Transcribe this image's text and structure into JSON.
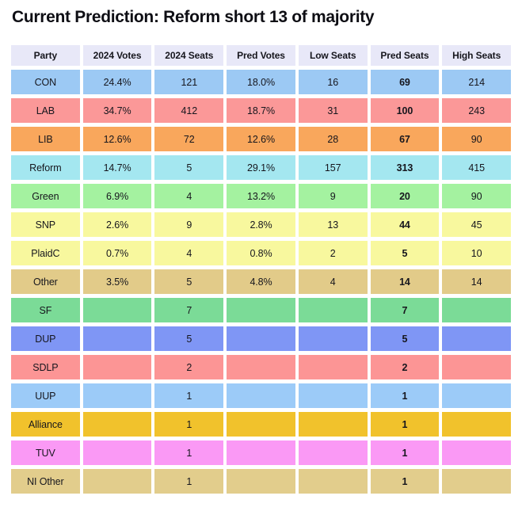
{
  "title": "Current Prediction: Reform short 13 of majority",
  "colors": {
    "page_bg": "#ffffff",
    "header_bg": "#e8e8f8",
    "text": "#16161d",
    "title_text": "#0e0e14"
  },
  "table": {
    "columns": [
      "Party",
      "2024 Votes",
      "2024 Seats",
      "Pred Votes",
      "Low Seats",
      "Pred Seats",
      "High Seats"
    ],
    "rows": [
      {
        "party": "CON",
        "color": "#9cc9f4",
        "votes2024": "24.4%",
        "seats2024": "121",
        "pred_votes": "18.0%",
        "low_seats": "16",
        "pred_seats": "69",
        "high_seats": "214"
      },
      {
        "party": "LAB",
        "color": "#fb9898",
        "votes2024": "34.7%",
        "seats2024": "412",
        "pred_votes": "18.7%",
        "low_seats": "31",
        "pred_seats": "100",
        "high_seats": "243"
      },
      {
        "party": "LIB",
        "color": "#f9a75c",
        "votes2024": "12.6%",
        "seats2024": "72",
        "pred_votes": "12.6%",
        "low_seats": "28",
        "pred_seats": "67",
        "high_seats": "90"
      },
      {
        "party": "Reform",
        "color": "#a4e7f0",
        "votes2024": "14.7%",
        "seats2024": "5",
        "pred_votes": "29.1%",
        "low_seats": "157",
        "pred_seats": "313",
        "high_seats": "415"
      },
      {
        "party": "Green",
        "color": "#a4f2a0",
        "votes2024": "6.9%",
        "seats2024": "4",
        "pred_votes": "13.2%",
        "low_seats": "9",
        "pred_seats": "20",
        "high_seats": "90"
      },
      {
        "party": "SNP",
        "color": "#f8f89e",
        "votes2024": "2.6%",
        "seats2024": "9",
        "pred_votes": "2.8%",
        "low_seats": "13",
        "pred_seats": "44",
        "high_seats": "45"
      },
      {
        "party": "PlaidC",
        "color": "#f8f89e",
        "votes2024": "0.7%",
        "seats2024": "4",
        "pred_votes": "0.8%",
        "low_seats": "2",
        "pred_seats": "5",
        "high_seats": "10"
      },
      {
        "party": "Other",
        "color": "#e2cb89",
        "votes2024": "3.5%",
        "seats2024": "5",
        "pred_votes": "4.8%",
        "low_seats": "4",
        "pred_seats": "14",
        "high_seats": "14"
      },
      {
        "party": "SF",
        "color": "#7bdb97",
        "votes2024": "",
        "seats2024": "7",
        "pred_votes": "",
        "low_seats": "",
        "pred_seats": "7",
        "high_seats": ""
      },
      {
        "party": "DUP",
        "color": "#7f96f5",
        "votes2024": "",
        "seats2024": "5",
        "pred_votes": "",
        "low_seats": "",
        "pred_seats": "5",
        "high_seats": ""
      },
      {
        "party": "SDLP",
        "color": "#fc9595",
        "votes2024": "",
        "seats2024": "2",
        "pred_votes": "",
        "low_seats": "",
        "pred_seats": "2",
        "high_seats": ""
      },
      {
        "party": "UUP",
        "color": "#9ccbf8",
        "votes2024": "",
        "seats2024": "1",
        "pred_votes": "",
        "low_seats": "",
        "pred_seats": "1",
        "high_seats": ""
      },
      {
        "party": "Alliance",
        "color": "#f1c22c",
        "votes2024": "",
        "seats2024": "1",
        "pred_votes": "",
        "low_seats": "",
        "pred_seats": "1",
        "high_seats": ""
      },
      {
        "party": "TUV",
        "color": "#fa99f5",
        "votes2024": "",
        "seats2024": "1",
        "pred_votes": "",
        "low_seats": "",
        "pred_seats": "1",
        "high_seats": ""
      },
      {
        "party": "NI Other",
        "color": "#e2cd8c",
        "votes2024": "",
        "seats2024": "1",
        "pred_votes": "",
        "low_seats": "",
        "pred_seats": "1",
        "high_seats": ""
      }
    ]
  },
  "chart_data": {
    "type": "table",
    "title": "Current Prediction: Reform short 13 of majority",
    "columns": [
      "Party",
      "2024 Votes",
      "2024 Seats",
      "Pred Votes",
      "Low Seats",
      "Pred Seats",
      "High Seats"
    ],
    "rows": [
      [
        "CON",
        "24.4%",
        121,
        "18.0%",
        16,
        69,
        214
      ],
      [
        "LAB",
        "34.7%",
        412,
        "18.7%",
        31,
        100,
        243
      ],
      [
        "LIB",
        "12.6%",
        72,
        "12.6%",
        28,
        67,
        90
      ],
      [
        "Reform",
        "14.7%",
        5,
        "29.1%",
        157,
        313,
        415
      ],
      [
        "Green",
        "6.9%",
        4,
        "13.2%",
        9,
        20,
        90
      ],
      [
        "SNP",
        "2.6%",
        9,
        "2.8%",
        13,
        44,
        45
      ],
      [
        "PlaidC",
        "0.7%",
        4,
        "0.8%",
        2,
        5,
        10
      ],
      [
        "Other",
        "3.5%",
        5,
        "4.8%",
        4,
        14,
        14
      ],
      [
        "SF",
        "",
        7,
        "",
        "",
        7,
        ""
      ],
      [
        "DUP",
        "",
        5,
        "",
        "",
        5,
        ""
      ],
      [
        "SDLP",
        "",
        2,
        "",
        "",
        2,
        ""
      ],
      [
        "UUP",
        "",
        1,
        "",
        "",
        1,
        ""
      ],
      [
        "Alliance",
        "",
        1,
        "",
        "",
        1,
        ""
      ],
      [
        "TUV",
        "",
        1,
        "",
        "",
        1,
        ""
      ],
      [
        "NI Other",
        "",
        1,
        "",
        "",
        1,
        ""
      ]
    ]
  }
}
